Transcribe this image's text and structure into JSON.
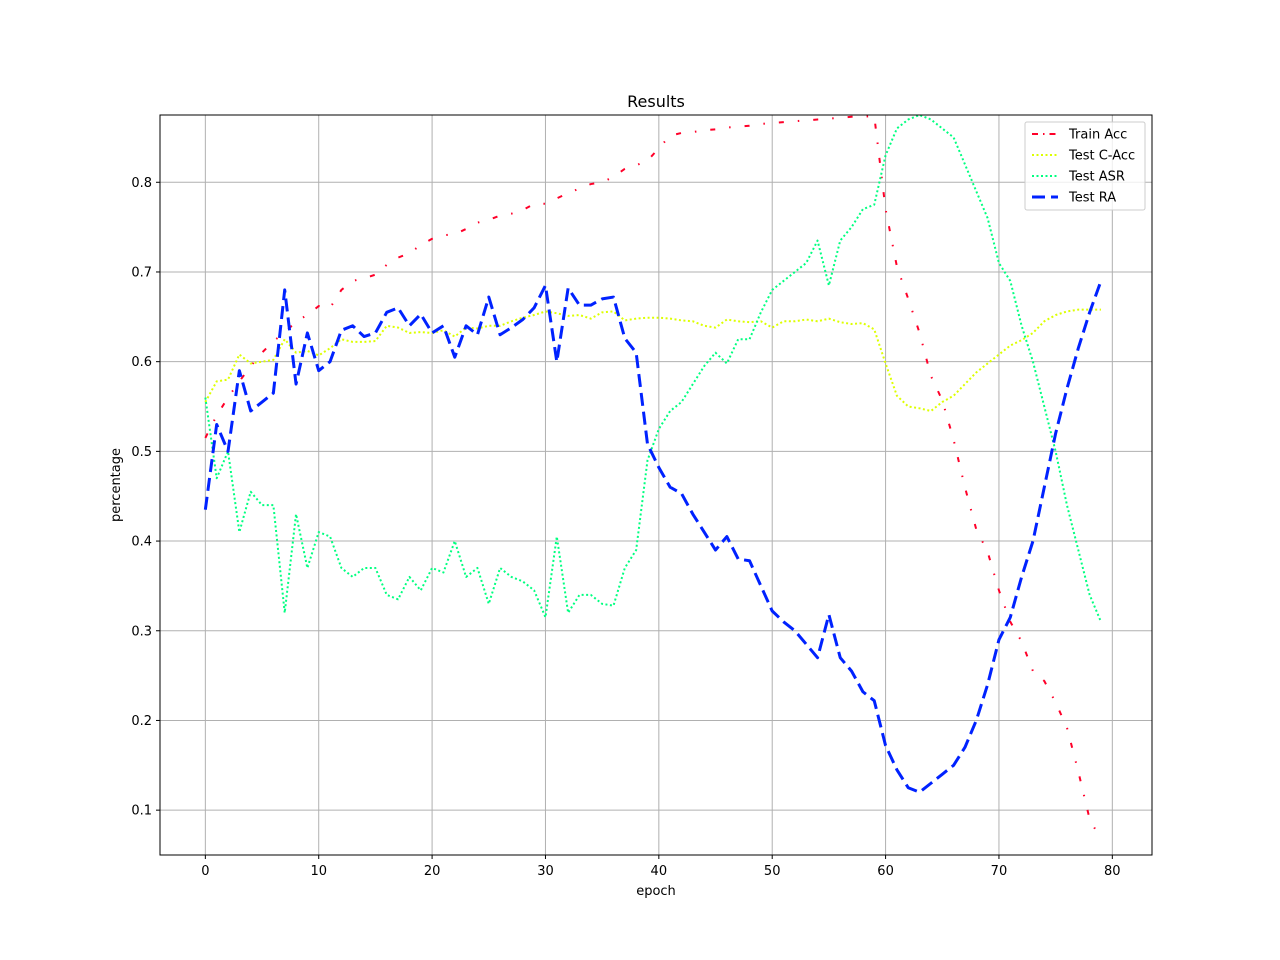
{
  "chart_data": {
    "type": "line",
    "title": "Results",
    "xlabel": "epoch",
    "ylabel": "percentage",
    "xlim": [
      -4,
      83.5
    ],
    "ylim": [
      0.05,
      0.875
    ],
    "xticks": [
      0,
      10,
      20,
      30,
      40,
      50,
      60,
      70,
      80
    ],
    "yticks": [
      0.1,
      0.2,
      0.3,
      0.4,
      0.5,
      0.6,
      0.7,
      0.8
    ],
    "grid": true,
    "legend_position": "top-right",
    "x": [
      0,
      1,
      2,
      3,
      4,
      5,
      6,
      7,
      8,
      9,
      10,
      11,
      12,
      13,
      14,
      15,
      16,
      17,
      18,
      19,
      20,
      21,
      22,
      23,
      24,
      25,
      26,
      27,
      28,
      29,
      30,
      31,
      32,
      33,
      34,
      35,
      36,
      37,
      38,
      39,
      40,
      41,
      42,
      43,
      44,
      45,
      46,
      47,
      48,
      49,
      50,
      51,
      52,
      53,
      54,
      55,
      56,
      57,
      58,
      59,
      60,
      61,
      62,
      63,
      64,
      65,
      66,
      67,
      68,
      69,
      70,
      71,
      72,
      73,
      74,
      75,
      76,
      77,
      78,
      79
    ],
    "series": [
      {
        "name": "Train Acc",
        "color": "#ff0029",
        "style": "dashdot",
        "values": [
          0.515,
          0.54,
          0.56,
          0.578,
          0.595,
          0.61,
          0.623,
          0.632,
          0.645,
          0.652,
          0.662,
          0.66,
          0.68,
          0.69,
          0.693,
          0.697,
          0.708,
          0.716,
          0.721,
          0.73,
          0.737,
          0.741,
          0.742,
          0.748,
          0.755,
          0.758,
          0.763,
          0.765,
          0.769,
          0.776,
          0.776,
          0.782,
          0.788,
          0.793,
          0.798,
          0.8,
          0.806,
          0.815,
          0.819,
          0.824,
          0.838,
          0.852,
          0.855,
          0.856,
          0.858,
          0.859,
          0.861,
          0.862,
          0.863,
          0.865,
          0.866,
          0.867,
          0.868,
          0.869,
          0.87,
          0.871,
          0.872,
          0.873,
          0.873,
          0.874,
          0.77,
          0.706,
          0.67,
          0.632,
          0.584,
          0.557,
          0.513,
          0.46,
          0.413,
          0.388,
          0.345,
          0.31,
          0.288,
          0.255,
          0.244,
          0.22,
          0.192,
          0.143,
          0.09,
          0.067
        ]
      },
      {
        "name": "Test C-Acc",
        "color": "#ddff00",
        "style": "dotted",
        "values": [
          0.555,
          0.578,
          0.58,
          0.608,
          0.598,
          0.6,
          0.602,
          0.625,
          0.61,
          0.612,
          0.607,
          0.615,
          0.625,
          0.622,
          0.622,
          0.623,
          0.64,
          0.638,
          0.632,
          0.633,
          0.632,
          0.635,
          0.628,
          0.638,
          0.637,
          0.64,
          0.64,
          0.645,
          0.649,
          0.652,
          0.656,
          0.654,
          0.651,
          0.652,
          0.648,
          0.655,
          0.656,
          0.646,
          0.648,
          0.649,
          0.649,
          0.648,
          0.646,
          0.645,
          0.64,
          0.638,
          0.647,
          0.645,
          0.644,
          0.645,
          0.638,
          0.645,
          0.645,
          0.647,
          0.645,
          0.648,
          0.644,
          0.642,
          0.643,
          0.636,
          0.598,
          0.562,
          0.55,
          0.548,
          0.545,
          0.555,
          0.562,
          0.575,
          0.588,
          0.598,
          0.608,
          0.618,
          0.624,
          0.632,
          0.645,
          0.652,
          0.656,
          0.658,
          0.658,
          0.658
        ]
      },
      {
        "name": "Test ASR",
        "color": "#00ff80",
        "style": "dotted",
        "values": [
          0.56,
          0.47,
          0.5,
          0.41,
          0.455,
          0.44,
          0.44,
          0.32,
          0.43,
          0.37,
          0.41,
          0.405,
          0.37,
          0.36,
          0.37,
          0.37,
          0.34,
          0.335,
          0.36,
          0.345,
          0.37,
          0.365,
          0.4,
          0.36,
          0.37,
          0.33,
          0.37,
          0.36,
          0.355,
          0.345,
          0.315,
          0.405,
          0.32,
          0.34,
          0.34,
          0.33,
          0.328,
          0.37,
          0.39,
          0.49,
          0.525,
          0.545,
          0.555,
          0.575,
          0.595,
          0.61,
          0.598,
          0.625,
          0.625,
          0.655,
          0.68,
          0.69,
          0.7,
          0.71,
          0.735,
          0.685,
          0.735,
          0.75,
          0.77,
          0.775,
          0.83,
          0.86,
          0.87,
          0.875,
          0.87,
          0.86,
          0.85,
          0.82,
          0.79,
          0.76,
          0.71,
          0.69,
          0.64,
          0.6,
          0.55,
          0.5,
          0.44,
          0.39,
          0.34,
          0.31
        ]
      },
      {
        "name": "Test RA",
        "color": "#0022ff",
        "style": "dashed",
        "values": [
          0.435,
          0.53,
          0.5,
          0.59,
          0.545,
          0.555,
          0.565,
          0.68,
          0.575,
          0.632,
          0.59,
          0.6,
          0.635,
          0.64,
          0.628,
          0.632,
          0.655,
          0.66,
          0.64,
          0.653,
          0.632,
          0.64,
          0.605,
          0.64,
          0.63,
          0.672,
          0.63,
          0.638,
          0.647,
          0.66,
          0.685,
          0.6,
          0.682,
          0.663,
          0.663,
          0.67,
          0.672,
          0.626,
          0.61,
          0.508,
          0.482,
          0.46,
          0.453,
          0.43,
          0.41,
          0.39,
          0.405,
          0.38,
          0.378,
          0.35,
          0.322,
          0.31,
          0.3,
          0.285,
          0.27,
          0.318,
          0.27,
          0.255,
          0.232,
          0.222,
          0.172,
          0.145,
          0.125,
          0.12,
          0.13,
          0.14,
          0.15,
          0.17,
          0.2,
          0.24,
          0.29,
          0.315,
          0.36,
          0.4,
          0.46,
          0.52,
          0.57,
          0.615,
          0.655,
          0.69
        ]
      }
    ]
  }
}
